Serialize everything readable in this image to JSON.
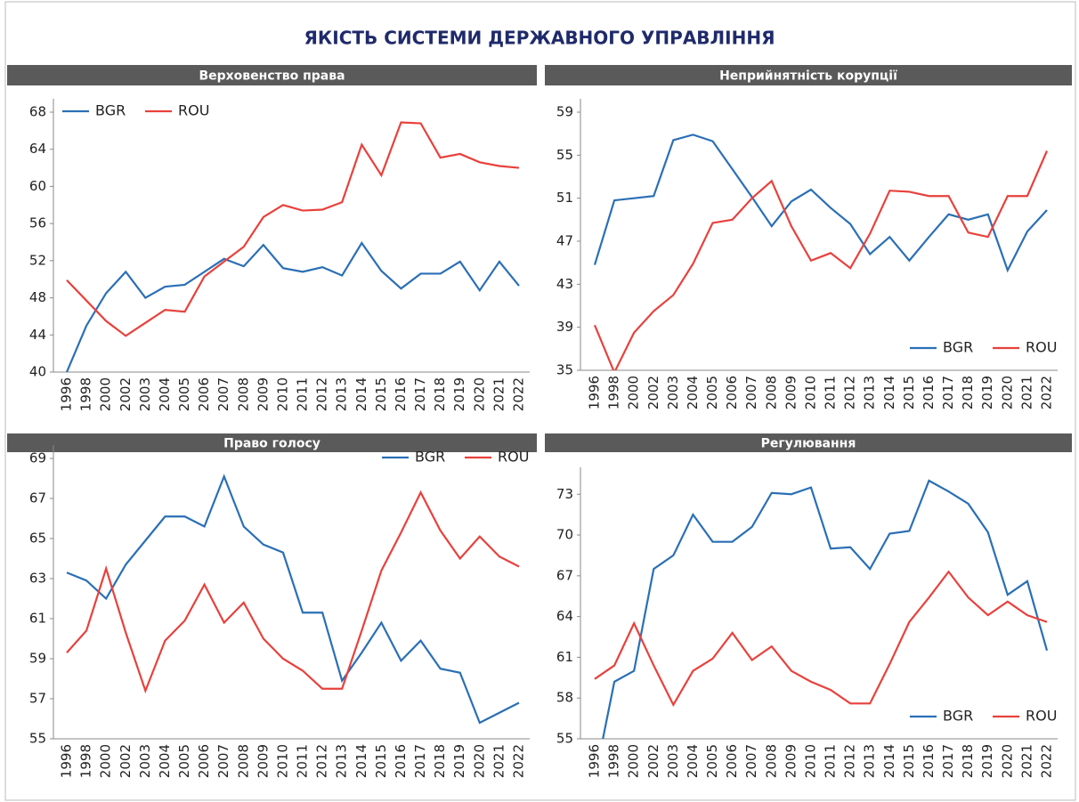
{
  "title": "ЯКІСТЬ СИСТЕМИ ДЕРЖАВНОГО УПРАВЛІННЯ",
  "chart_data": [
    {
      "type": "line",
      "title": "Верховенство права",
      "categories": [
        "1996",
        "1998",
        "2000",
        "2002",
        "2003",
        "2004",
        "2005",
        "2006",
        "2007",
        "2008",
        "2009",
        "2010",
        "2011",
        "2012",
        "2013",
        "2014",
        "2015",
        "2016",
        "2017",
        "2018",
        "2019",
        "2020",
        "2021",
        "2022"
      ],
      "series": [
        {
          "name": "BGR",
          "color": "#2a6fb5",
          "values": [
            40,
            45,
            48.5,
            50.8,
            48,
            49.2,
            49.4,
            50.8,
            52.2,
            51.4,
            53.7,
            51.2,
            50.8,
            51.3,
            50.4,
            53.9,
            50.9,
            49,
            50.6,
            50.6,
            51.9,
            48.8,
            51.9,
            49.3
          ]
        },
        {
          "name": "ROU",
          "color": "#e8413c",
          "values": [
            49.9,
            47.7,
            45.5,
            43.9,
            45.3,
            46.7,
            46.5,
            50.3,
            51.9,
            53.5,
            56.7,
            58,
            57.4,
            57.5,
            58.3,
            64.5,
            61.2,
            66.9,
            66.8,
            63.1,
            63.5,
            62.6,
            62.2,
            62
          ]
        }
      ],
      "ylim": [
        40,
        68
      ],
      "yticks": [
        40,
        44,
        48,
        52,
        56,
        60,
        64,
        68
      ],
      "legend": "upper left"
    },
    {
      "type": "line",
      "title": "Неприйнятність корупції",
      "categories": [
        "1996",
        "1998",
        "2000",
        "2002",
        "2003",
        "2004",
        "2005",
        "2006",
        "2007",
        "2008",
        "2009",
        "2010",
        "2011",
        "2012",
        "2013",
        "2014",
        "2015",
        "2016",
        "2017",
        "2018",
        "2019",
        "2020",
        "2021",
        "2022"
      ],
      "series": [
        {
          "name": "BGR",
          "color": "#2a6fb5",
          "values": [
            44.8,
            50.8,
            51,
            51.2,
            56.4,
            56.9,
            56.3,
            53.7,
            51.1,
            48.4,
            50.7,
            51.8,
            50.1,
            48.6,
            45.8,
            47.4,
            45.2,
            47.4,
            49.5,
            49,
            49.5,
            44.3,
            47.9,
            49.9
          ]
        },
        {
          "name": "ROU",
          "color": "#e8413c",
          "values": [
            39.2,
            34.8,
            38.5,
            40.5,
            42,
            44.9,
            48.7,
            49,
            51,
            52.6,
            48.4,
            45.2,
            45.9,
            44.5,
            47.7,
            51.7,
            51.6,
            51.2,
            51.2,
            47.8,
            47.4,
            51.2,
            51.2,
            55.4
          ]
        }
      ],
      "ylim": [
        35,
        59
      ],
      "yticks": [
        35,
        39,
        43,
        47,
        51,
        55,
        59
      ],
      "legend": "lower right"
    },
    {
      "type": "line",
      "title": "Право голосу",
      "categories": [
        "1996",
        "1998",
        "2000",
        "2002",
        "2003",
        "2004",
        "2005",
        "2006",
        "2007",
        "2008",
        "2009",
        "2010",
        "2011",
        "2012",
        "2013",
        "2014",
        "2015",
        "2016",
        "2017",
        "2018",
        "2019",
        "2020",
        "2021",
        "2022"
      ],
      "series": [
        {
          "name": "BGR",
          "color": "#2a6fb5",
          "values": [
            63.3,
            62.9,
            62,
            63.7,
            64.9,
            66.1,
            66.1,
            65.6,
            68.1,
            65.6,
            64.7,
            64.3,
            61.3,
            61.3,
            57.9,
            59.3,
            60.8,
            58.9,
            59.9,
            58.5,
            58.3,
            55.8,
            56.3,
            56.8
          ]
        },
        {
          "name": "ROU",
          "color": "#e8413c",
          "values": [
            59.3,
            60.4,
            63.5,
            60.3,
            57.4,
            59.9,
            60.9,
            62.7,
            60.8,
            61.8,
            60,
            59,
            58.4,
            57.5,
            57.5,
            60.4,
            63.4,
            65.3,
            67.3,
            65.4,
            64,
            65.1,
            64.1,
            63.6
          ]
        }
      ],
      "ylim": [
        55,
        69
      ],
      "yticks": [
        55,
        57,
        59,
        61,
        63,
        65,
        67,
        69
      ],
      "legend": "upper right"
    },
    {
      "type": "line",
      "title": "Регулювання",
      "categories": [
        "1996",
        "1998",
        "2000",
        "2002",
        "2003",
        "2004",
        "2005",
        "2006",
        "2007",
        "2008",
        "2009",
        "2010",
        "2011",
        "2012",
        "2013",
        "2014",
        "2015",
        "2016",
        "2017",
        "2018",
        "2019",
        "2020",
        "2021",
        "2022"
      ],
      "series": [
        {
          "name": "BGR",
          "color": "#2a6fb5",
          "values": [
            52,
            59.2,
            60,
            67.5,
            68.5,
            71.5,
            69.5,
            69.5,
            70.6,
            73.1,
            73,
            73.5,
            69,
            69.1,
            67.5,
            70.1,
            70.3,
            74,
            73.2,
            72.3,
            70.2,
            65.6,
            66.6,
            61.5
          ]
        },
        {
          "name": "ROU",
          "color": "#e8413c",
          "values": [
            59.4,
            60.4,
            63.5,
            60.4,
            57.5,
            60,
            60.9,
            62.8,
            60.8,
            61.8,
            60,
            59.2,
            58.6,
            57.6,
            57.6,
            60.5,
            63.6,
            65.4,
            67.3,
            65.4,
            64.1,
            65.1,
            64.1,
            63.6
          ]
        }
      ],
      "ylim": [
        55,
        74
      ],
      "yticks": [
        55,
        58,
        61,
        64,
        67,
        70,
        73
      ],
      "legend": "lower right"
    }
  ]
}
